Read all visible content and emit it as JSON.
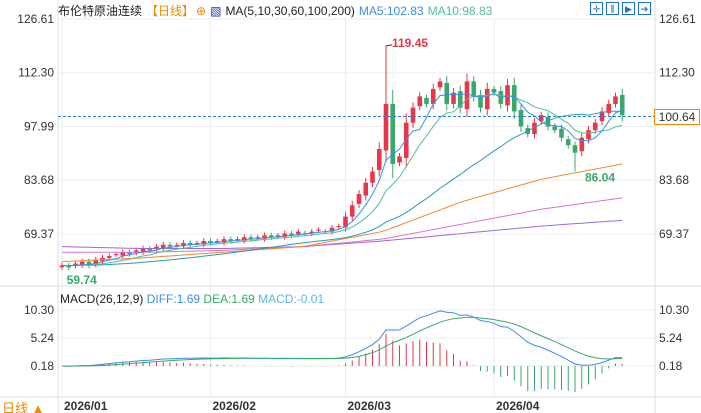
{
  "header": {
    "title": "布伦特原油连续",
    "period": "【日线】",
    "ma_label": "MA(5,10,30,60,100,200)",
    "ma5": "MA5:102.83",
    "ma10": "MA10:98.83"
  },
  "toolbar": [
    "crosshair",
    "zoom-in",
    "zoom-out",
    "next"
  ],
  "price_axis": [
    "126.61",
    "112.30",
    "97.99",
    "83.68",
    "69.37"
  ],
  "price_axis_values": [
    126.61,
    112.3,
    97.99,
    83.68,
    69.37
  ],
  "current_price": "100.64",
  "annotations": {
    "high": "119.45",
    "low_recent": "86.04",
    "low_start": "59.74"
  },
  "macd": {
    "label": "MACD(26,12,9)",
    "diff": "DIFF:1.69",
    "dea": "DEA:1.69",
    "macd": "MACD:-0.01",
    "axis": [
      "10.30",
      "5.24",
      "0.18"
    ],
    "axis_values": [
      10.3,
      5.24,
      0.18
    ]
  },
  "months": [
    "2026/01",
    "2026/02",
    "2026/03",
    "2026/04"
  ],
  "month_index": [
    0,
    22,
    42,
    64
  ],
  "period_switch": "日线 ▲",
  "colors": {
    "up": "#e8374a",
    "down": "#3aa86b",
    "ma5": "#3b8ee8",
    "ma10": "#4fbf9a",
    "ma30": "#2a9bb5",
    "ma60": "#f08a2a",
    "ma100": "#e070c8",
    "ma200": "#9a6ad8"
  },
  "chart_data": {
    "type": "candlestick",
    "closes": [
      61,
      60.5,
      61.5,
      62,
      61,
      62.5,
      63,
      63.5,
      64,
      64.5,
      64,
      65,
      65.5,
      65,
      66,
      66.5,
      66,
      66.5,
      67,
      66.5,
      67,
      67.5,
      67,
      67.5,
      68,
      67.5,
      68,
      68.5,
      68,
      68.5,
      69,
      68.5,
      69,
      69.5,
      69,
      70,
      69.5,
      70,
      70.5,
      70,
      71,
      71.5,
      74,
      77,
      80,
      83,
      86,
      92,
      104,
      88,
      90,
      99,
      103,
      106,
      104,
      108,
      110,
      104,
      107,
      103,
      110,
      106,
      103,
      108,
      107,
      104,
      109,
      102,
      98,
      96,
      99,
      101,
      98,
      97,
      95,
      93,
      91,
      95,
      97,
      99,
      102,
      104,
      106,
      101
    ],
    "high_points": {
      "48": 119.45,
      "76": 86.04,
      "1": 59.74
    },
    "ma60": [
      62,
      63,
      64.5,
      66,
      70,
      78,
      84,
      88
    ],
    "ma100": [
      64.5,
      64.5,
      65,
      66,
      68,
      72,
      76,
      79
    ],
    "ma200": [
      66,
      65.5,
      65.5,
      66,
      67.5,
      69.5,
      71.5,
      73
    ]
  }
}
